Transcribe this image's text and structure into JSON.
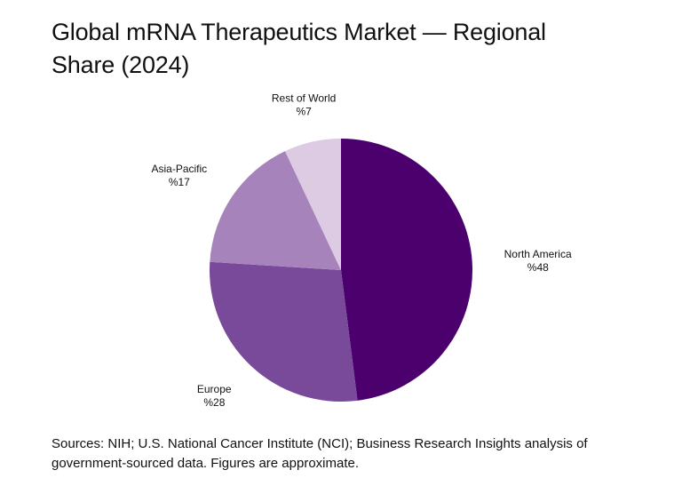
{
  "title_line1": "Global mRNA Therapeutics Market — Regional",
  "title_line2": "Share (2024)",
  "source_note": "Sources: NIH; U.S. National Cancer Institute (NCI); Business Research Insights analysis of government-sourced data. Figures are approximate.",
  "chart_data": {
    "type": "pie",
    "categories": [
      "North America",
      "Europe",
      "Asia-Pacific",
      "Rest of World"
    ],
    "values": [
      48,
      28,
      17,
      7
    ],
    "value_labels": [
      "%48",
      "%28",
      "%17",
      "%7"
    ],
    "colors": [
      "#4b006e",
      "#7a4a9a",
      "#a783bb",
      "#dccbe3"
    ],
    "start": "12 o'clock",
    "direction": "clockwise",
    "legend": "none"
  }
}
